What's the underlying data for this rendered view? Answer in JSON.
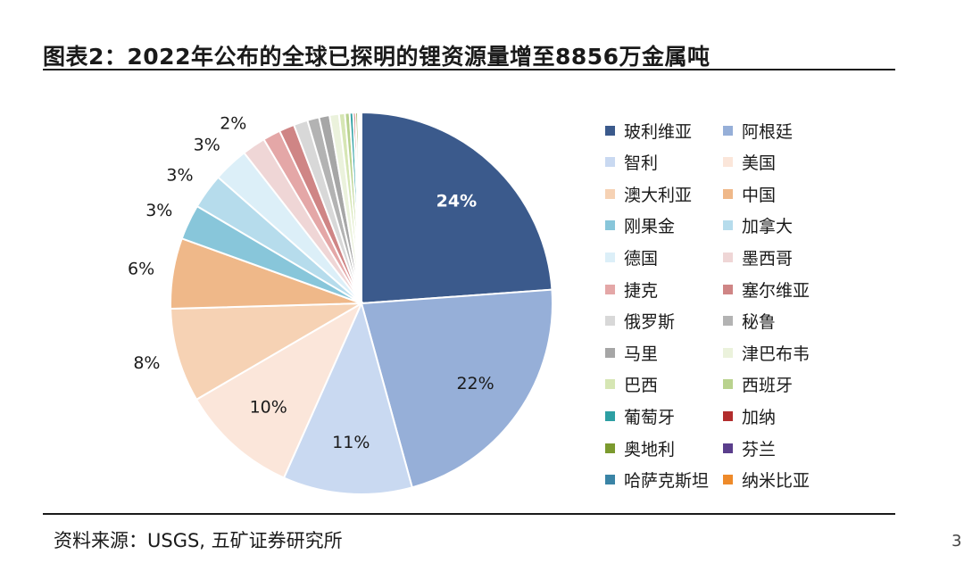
{
  "title": "图表2：2022年公布的全球已探明的锂资源量增至8856万金属吨",
  "source": "资料来源：USGS, 五矿证券研究所",
  "page_number": "3",
  "chart_data": {
    "type": "pie",
    "title": "",
    "legend_position": "right",
    "start_angle_deg": 0,
    "direction": "clockwise",
    "slices": [
      {
        "name": "玻利维亚",
        "value": 24,
        "label": "24%",
        "color": "#3b5a8c"
      },
      {
        "name": "阿根廷",
        "value": 22,
        "label": "22%",
        "color": "#96afd8"
      },
      {
        "name": "智利",
        "value": 11,
        "label": "11%",
        "color": "#c9d9f1"
      },
      {
        "name": "美国",
        "value": 10,
        "label": "10%",
        "color": "#fbe6da"
      },
      {
        "name": "澳大利亚",
        "value": 8,
        "label": "8%",
        "color": "#f6d2b4"
      },
      {
        "name": "中国",
        "value": 6,
        "label": "6%",
        "color": "#efb889"
      },
      {
        "name": "刚果金",
        "value": 3,
        "label": "3%",
        "color": "#88c6da"
      },
      {
        "name": "加拿大",
        "value": 3,
        "label": "3%",
        "color": "#b6dcec"
      },
      {
        "name": "德国",
        "value": 3,
        "label": "3%",
        "color": "#dceff8"
      },
      {
        "name": "墨西哥",
        "value": 2,
        "label": "2%",
        "color": "#efd6d6"
      },
      {
        "name": "捷克",
        "value": 1.5,
        "label": "",
        "color": "#e4a7a7"
      },
      {
        "name": "塞尔维亚",
        "value": 1.3,
        "label": "",
        "color": "#cf8585"
      },
      {
        "name": "俄罗斯",
        "value": 1.2,
        "label": "",
        "color": "#d8d8d8"
      },
      {
        "name": "秘鲁",
        "value": 1.0,
        "label": "",
        "color": "#b3b3b3"
      },
      {
        "name": "马里",
        "value": 0.9,
        "label": "",
        "color": "#a6a6a6"
      },
      {
        "name": "津巴布韦",
        "value": 0.8,
        "label": "",
        "color": "#ebf2dc"
      },
      {
        "name": "巴西",
        "value": 0.5,
        "label": "",
        "color": "#d6e6b4"
      },
      {
        "name": "西班牙",
        "value": 0.4,
        "label": "",
        "color": "#b9d28e"
      },
      {
        "name": "葡萄牙",
        "value": 0.3,
        "label": "",
        "color": "#2d9fa3"
      },
      {
        "name": "加纳",
        "value": 0.2,
        "label": "",
        "color": "#b22d2d"
      },
      {
        "name": "奥地利",
        "value": 0.2,
        "label": "",
        "color": "#7b9a2e"
      },
      {
        "name": "芬兰",
        "value": 0.1,
        "label": "",
        "color": "#5a3e8c"
      },
      {
        "name": "哈萨克斯坦",
        "value": 0.1,
        "label": "",
        "color": "#3a84a6"
      },
      {
        "name": "纳米比亚",
        "value": 0.1,
        "label": "",
        "color": "#ee8a2a"
      }
    ]
  }
}
